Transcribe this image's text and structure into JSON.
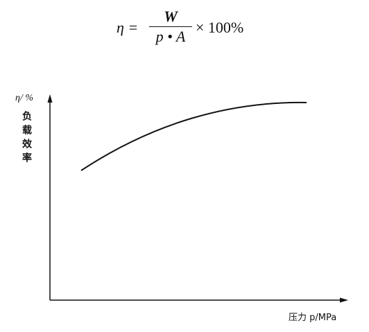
{
  "formula": {
    "lhs": "η =",
    "numerator": "W",
    "denominator": "p • A",
    "multiplier": "× 100%"
  },
  "y_axis": {
    "label": "η/ %",
    "name": "负载效率"
  },
  "x_axis": {
    "label": "压力 p/MPa"
  }
}
